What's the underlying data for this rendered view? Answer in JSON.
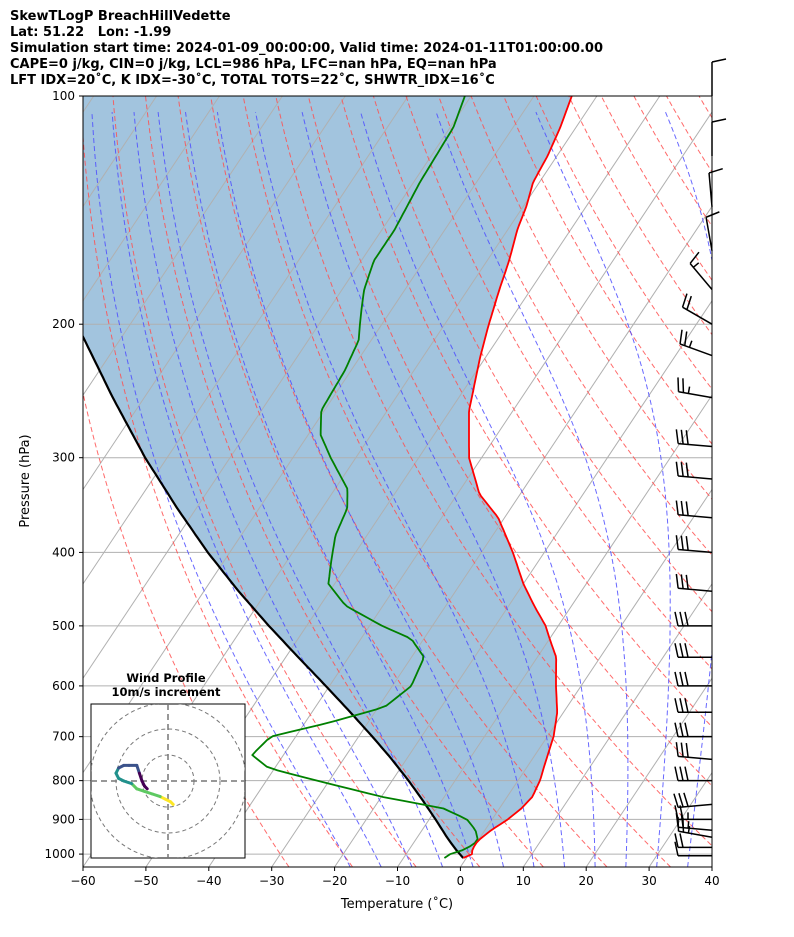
{
  "header": {
    "lines": [
      "SkewTLogP BreachHillVedette",
      "Lat: 51.22   Lon: -1.99",
      "Simulation start time: 2024-01-09_00:00:00, Valid time: 2024-01-11T01:00:00.00",
      "CAPE=0 j/kg, CIN=0 j/kg, LCL=986 hPa, LFC=nan hPa, EQ=nan hPa",
      "LFT IDX=20˚C, K IDX=-30˚C, TOTAL TOTS=22˚C, SHWTR_IDX=16˚C"
    ]
  },
  "chart_data": {
    "type": "line",
    "subtype": "skew-T log-P",
    "xlabel": "Temperature (˚C)",
    "ylabel": "Pressure (hPa)",
    "xlim": [
      -60,
      40
    ],
    "ylim": [
      1040,
      100
    ],
    "y_scale": "log",
    "x_ticks": [
      -60,
      -50,
      -40,
      -30,
      -20,
      -10,
      0,
      10,
      20,
      30,
      40
    ],
    "x_tick_labels": [
      "−60",
      "−50",
      "−40",
      "−30",
      "−20",
      "−10",
      "0",
      "10",
      "20",
      "30",
      "40"
    ],
    "y_ticks": [
      1000,
      900,
      800,
      700,
      600,
      500,
      400,
      300,
      200,
      100
    ],
    "y_tick_labels": [
      "1000",
      "900",
      "800",
      "700",
      "600",
      "500",
      "400",
      "300",
      "200",
      "100"
    ],
    "grid": true,
    "colors": {
      "temperature": "#ff0000",
      "dewpoint": "#008000",
      "parcel": "#000000",
      "shade": "#a2c4de",
      "dry_adiabats": "#ff5050",
      "moist_adiabats": "#4d4dff",
      "mixing_ratio": "#9e9e9e",
      "grid": "#b0b0b0"
    },
    "series": [
      {
        "key": "temperature",
        "p": [
          1012,
          1000,
          985,
          960,
          930,
          900,
          870,
          840,
          800,
          760,
          700,
          650,
          600,
          550,
          520,
          500,
          470,
          440,
          400,
          360,
          335,
          300,
          260,
          220,
          200,
          180,
          165,
          150,
          140,
          130,
          120,
          110,
          100
        ],
        "t": [
          -0.5,
          0.5,
          0.0,
          0.0,
          1.0,
          2.5,
          3.5,
          4.0,
          3.5,
          2.5,
          1.0,
          -1.0,
          -4.0,
          -7.0,
          -10.0,
          -12.0,
          -16.0,
          -20.0,
          -25.0,
          -31.0,
          -36.5,
          -42.0,
          -47.0,
          -51.0,
          -53.0,
          -55.0,
          -56.5,
          -58.5,
          -59.5,
          -61.0,
          -61.5,
          -62.5,
          -64.0
        ]
      },
      {
        "key": "dewpoint",
        "p": [
          1012,
          1000,
          985,
          960,
          930,
          900,
          870,
          840,
          800,
          770,
          740,
          700,
          670,
          640,
          600,
          550,
          520,
          500,
          470,
          440,
          410,
          380,
          350,
          330,
          300,
          280,
          260,
          230,
          210,
          200,
          190,
          180,
          165,
          150,
          130,
          110,
          100
        ],
        "t": [
          -3.5,
          -3.0,
          -1.0,
          0.0,
          -1.5,
          -4.0,
          -9.0,
          -20.0,
          -32.0,
          -41.0,
          -45.0,
          -44.0,
          -36.0,
          -29.0,
          -27.0,
          -28.0,
          -32.0,
          -38.0,
          -46.0,
          -51.0,
          -53.0,
          -55.0,
          -56.0,
          -58.0,
          -64.0,
          -68.0,
          -70.5,
          -71.0,
          -72.0,
          -73.5,
          -75.0,
          -76.5,
          -78.0,
          -78.0,
          -79.0,
          -79.5,
          -81.0
        ]
      },
      {
        "key": "parcel",
        "p": [
          1012,
          986,
          950,
          900,
          850,
          800,
          750,
          700,
          650,
          600,
          550,
          500,
          450,
          400,
          350,
          300,
          250,
          200,
          150,
          100
        ],
        "t": [
          -0.5,
          -2.6,
          -5.3,
          -9.0,
          -13.0,
          -17.4,
          -22.3,
          -27.8,
          -33.9,
          -40.6,
          -48.0,
          -56.0,
          -64.5,
          -73.5,
          -83.0,
          -93.5,
          -105.0,
          -118.5,
          -135.0,
          -157.0
        ]
      }
    ],
    "wind_barbs": {
      "p": [
        1005,
        980,
        950,
        930,
        900,
        860,
        800,
        750,
        700,
        650,
        600,
        550,
        500,
        450,
        400,
        360,
        320,
        290,
        250,
        220,
        200,
        180,
        160,
        140,
        120,
        100
      ],
      "speed_kt": [
        10,
        20,
        25,
        25,
        25,
        30,
        30,
        30,
        30,
        30,
        30,
        30,
        30,
        30,
        30,
        30,
        30,
        30,
        25,
        25,
        20,
        15,
        10,
        10,
        10,
        10
      ],
      "direction_deg": [
        270,
        270,
        280,
        275,
        270,
        265,
        270,
        275,
        270,
        270,
        270,
        270,
        270,
        275,
        275,
        275,
        275,
        275,
        280,
        290,
        300,
        320,
        350,
        355,
        0,
        0
      ]
    },
    "inset": {
      "title_lines": [
        "Wind Profile",
        "10m/s increment"
      ],
      "rings_ms": [
        10,
        20,
        30
      ],
      "hodograph": {
        "u": [
          2,
          1,
          -1,
          -3,
          -6,
          -9,
          -12,
          -14,
          -17,
          -19,
          -20,
          -19,
          -17,
          -15,
          -12,
          -11,
          -10,
          -9,
          -8
        ],
        "v": [
          -9,
          -8,
          -7,
          -6,
          -5,
          -4,
          -3,
          -1,
          0,
          1,
          3,
          5,
          6,
          6,
          6,
          3,
          0,
          -2,
          -3
        ]
      }
    }
  }
}
